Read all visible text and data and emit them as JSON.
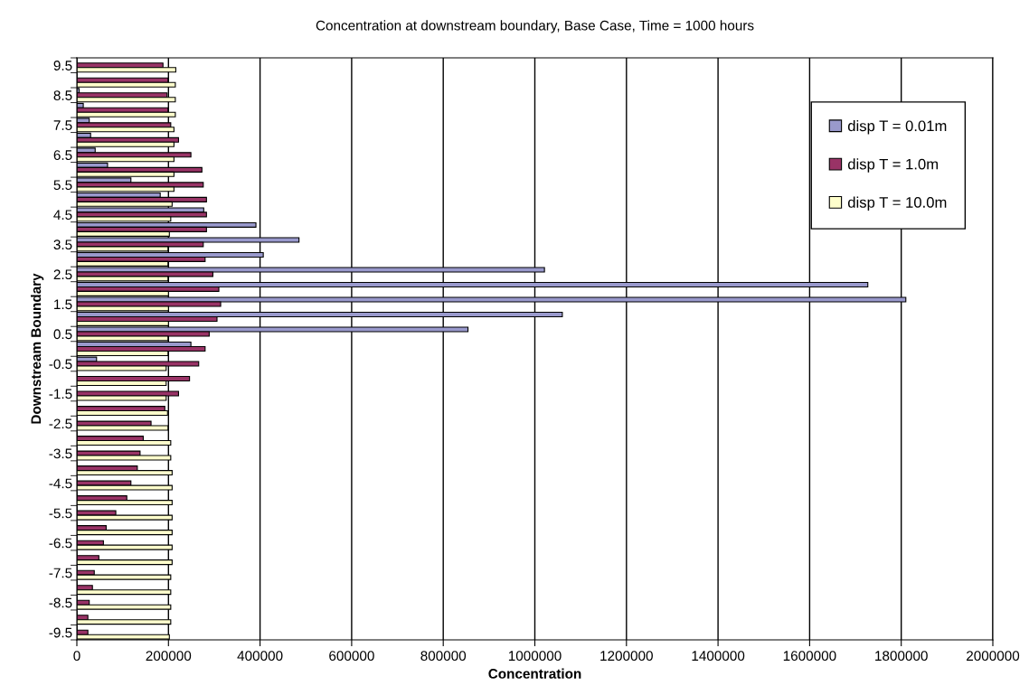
{
  "chart_data": {
    "type": "bar",
    "orientation": "horizontal",
    "title": "Concentration at downstream boundary, Base Case, Time = 1000 hours",
    "xlabel": "Concentration",
    "ylabel": "Downstream Boundary",
    "categories": [
      "9.5",
      null,
      "8.5",
      null,
      "7.5",
      null,
      "6.5",
      null,
      "5.5",
      null,
      "4.5",
      null,
      "3.5",
      null,
      "2.5",
      null,
      "1.5",
      null,
      "0.5",
      null,
      "-0.5",
      null,
      "-1.5",
      null,
      "-2.5",
      null,
      "-3.5",
      null,
      "-4.5",
      null,
      "-5.5",
      null,
      "-6.5",
      null,
      "-7.5",
      null,
      "-8.5",
      null,
      "-9.5"
    ],
    "series": [
      {
        "name": "disp T = 0.01m",
        "color": "#9999cc",
        "values": [
          0,
          0,
          5000,
          14000,
          27000,
          30000,
          40000,
          67000,
          118000,
          182000,
          277000,
          391000,
          485000,
          407000,
          1021000,
          1727000,
          1810000,
          1060000,
          854000,
          249000,
          43000,
          0,
          null,
          0,
          0,
          0,
          0,
          0,
          0,
          0,
          0,
          0,
          0,
          0,
          0,
          0,
          0,
          0,
          0
        ]
      },
      {
        "name": "disp T = 1.0m",
        "color": "#993366",
        "values": [
          188000,
          199000,
          197000,
          199000,
          205000,
          222000,
          249000,
          273000,
          276000,
          283000,
          283000,
          283000,
          276000,
          280000,
          297000,
          310000,
          314000,
          306000,
          289000,
          280000,
          266000,
          246000,
          222000,
          192000,
          162000,
          145000,
          138000,
          132000,
          118000,
          109000,
          85000,
          64000,
          58000,
          48000,
          38000,
          34000,
          27000,
          24000,
          24000
        ]
      },
      {
        "name": "disp T = 10.0m",
        "color": "#ffffcc",
        "values": [
          216000,
          215000,
          215000,
          215000,
          212000,
          212000,
          212000,
          212000,
          212000,
          208000,
          205000,
          202000,
          199000,
          199000,
          199000,
          200000,
          200000,
          200000,
          199000,
          199000,
          195000,
          195000,
          195000,
          198000,
          199000,
          205000,
          205000,
          208000,
          208000,
          208000,
          208000,
          208000,
          208000,
          208000,
          205000,
          205000,
          205000,
          205000,
          202000
        ]
      }
    ],
    "xlim": [
      0,
      2000000
    ],
    "xticks": [
      0,
      200000,
      400000,
      600000,
      800000,
      1000000,
      1200000,
      1400000,
      1600000,
      1800000,
      2000000
    ],
    "grid": "x",
    "legend": "top right"
  }
}
